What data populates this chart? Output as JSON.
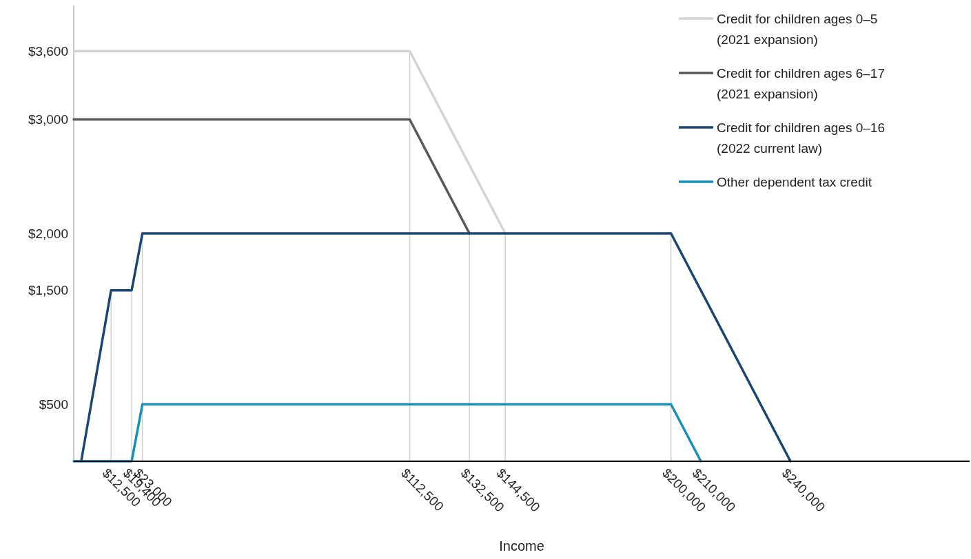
{
  "chart_data": {
    "type": "line",
    "xlabel": "Income",
    "xlim": [
      0,
      300000
    ],
    "ylim": [
      0,
      4000
    ],
    "xticks": [
      {
        "value": 12500,
        "label": "$12,500"
      },
      {
        "value": 19400,
        "label": "$19,400"
      },
      {
        "value": 23000,
        "label": "$23,000"
      },
      {
        "value": 112500,
        "label": "$112,500"
      },
      {
        "value": 132500,
        "label": "$132,500"
      },
      {
        "value": 144500,
        "label": "$144,500"
      },
      {
        "value": 200000,
        "label": "$200,000"
      },
      {
        "value": 210000,
        "label": "$210,000"
      },
      {
        "value": 240000,
        "label": "$240,000"
      }
    ],
    "yticks": [
      {
        "value": 500,
        "label": "$500"
      },
      {
        "value": 1500,
        "label": "$1,500"
      },
      {
        "value": 2000,
        "label": "$2,000"
      },
      {
        "value": 3000,
        "label": "$3,000"
      },
      {
        "value": 3600,
        "label": "$3,600"
      }
    ],
    "grid": "x",
    "legend": "top right",
    "marker": "none",
    "line_style": "solid",
    "series": [
      {
        "name": "Credit for children ages 0–5 (2021 expansion)",
        "color": "#d4d4d4",
        "x": [
          0,
          112500,
          144500
        ],
        "values": [
          3600,
          3600,
          2000
        ]
      },
      {
        "name": "Credit for children ages 6–17 (2021 expansion)",
        "color": "#58585a",
        "x": [
          0,
          112500,
          132500
        ],
        "values": [
          3000,
          3000,
          2000
        ]
      },
      {
        "name": "Credit for children ages 0–16 (2022 current law)",
        "color": "#1c4672",
        "x": [
          2500,
          12500,
          19400,
          23000,
          200000,
          240000
        ],
        "values": [
          0,
          1500,
          1500,
          2000,
          2000,
          0
        ]
      },
      {
        "name": "Other dependent tax credit",
        "color": "#1590b8",
        "x": [
          0,
          19400,
          23000,
          200000,
          210000
        ],
        "values": [
          0,
          0,
          500,
          500,
          0
        ]
      }
    ]
  }
}
